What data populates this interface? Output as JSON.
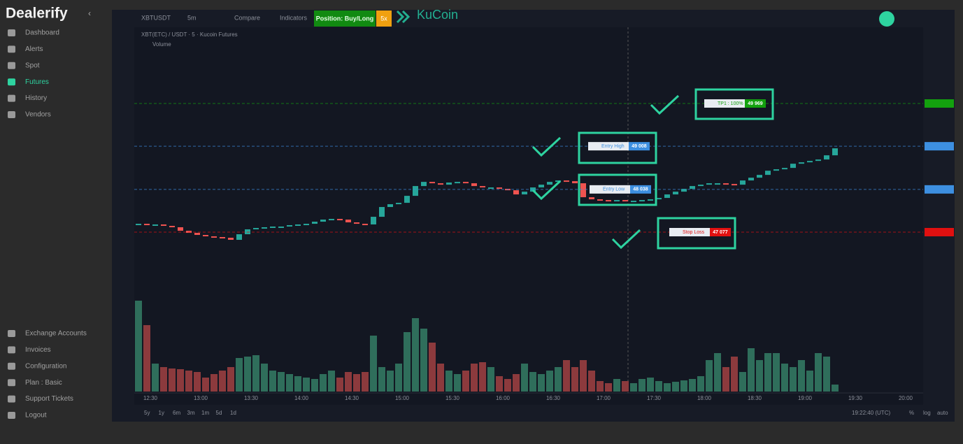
{
  "sidebar": {
    "brand": "Dealerify",
    "nav": [
      "Dashboard",
      "Alerts",
      "Spot",
      "Futures",
      "History",
      "Vendors"
    ],
    "bottom_nav": [
      "Exchange Accounts",
      "Invoices",
      "Configuration",
      "Plan : Basic",
      "Support Tickets",
      "Logout"
    ]
  },
  "toolbar": {
    "symbol": "XBTUSDT",
    "interval": "5m",
    "compare": "Compare",
    "indicators": "Indicators",
    "position": "Position: Buy/Long",
    "leverage": "5x",
    "exchange": "KuCoin"
  },
  "chart_data": {
    "type": "candlestick",
    "title": "XBT(ETC) / USDT · 5 · Kucoin Futures",
    "volume_label": "Volume",
    "time_labels": [
      "12:30",
      "13:00",
      "13:30",
      "14:00",
      "14:30",
      "15:00",
      "15:30",
      "16:00",
      "16:30",
      "17:00",
      "17:30",
      "18:00",
      "18:30",
      "19:00",
      "19:30",
      "20:00"
    ],
    "closes": [
      47265,
      47234,
      47250,
      47218,
      47187,
      47108,
      47061,
      47014,
      46983,
      46967,
      46951,
      46904,
      47030,
      47140,
      47171,
      47187,
      47203,
      47203,
      47234,
      47250,
      47265,
      47312,
      47359,
      47375,
      47359,
      47297,
      47265,
      47250,
      47422,
      47642,
      47705,
      47736,
      47893,
      48113,
      48207,
      48176,
      48144,
      48192,
      48207,
      48176,
      48113,
      48082,
      48082,
      48050,
      48019,
      47925,
      47987,
      48082,
      48144,
      48207,
      48239,
      48223,
      48176,
      47862,
      47815,
      47799,
      47783,
      47799,
      47783,
      47783,
      47799,
      47815,
      47846,
      47925,
      47987,
      48050,
      48113,
      48144,
      48176,
      48176,
      48160,
      48144,
      48239,
      48301,
      48364,
      48458,
      48490,
      48521,
      48615,
      48647,
      48678,
      48710,
      48804,
      48961
    ],
    "volumes": [
      130,
      95,
      40,
      35,
      33,
      32,
      30,
      28,
      20,
      25,
      30,
      35,
      48,
      50,
      52,
      40,
      30,
      28,
      25,
      22,
      20,
      18,
      25,
      30,
      20,
      28,
      25,
      28,
      80,
      35,
      30,
      40,
      85,
      105,
      90,
      70,
      40,
      30,
      25,
      30,
      40,
      42,
      35,
      22,
      18,
      25,
      40,
      28,
      25,
      30,
      35,
      45,
      35,
      45,
      30,
      15,
      12,
      18,
      15,
      12,
      18,
      20,
      15,
      12,
      14,
      16,
      18,
      22,
      45,
      55,
      35,
      50,
      28,
      62,
      45,
      55,
      55,
      40,
      35,
      45,
      30,
      55,
      50,
      10
    ],
    "levels": [
      {
        "name": "TP1 : 100%",
        "value": 49969,
        "value_label": "49 969",
        "color": "#13a10e"
      },
      {
        "name": "Entry High",
        "value": 49008,
        "value_label": "49 008",
        "color": "#3d8fe0"
      },
      {
        "name": "Entry Low",
        "value": 48038,
        "value_label": "48 038",
        "color": "#3d8fe0"
      },
      {
        "name": "Stop Loss",
        "value": 47077,
        "value_label": "47 077",
        "color": "#e01010"
      }
    ],
    "range_buttons": [
      "5y",
      "1y",
      "6m",
      "3m",
      "1m",
      "5d",
      "1d"
    ],
    "clock": "19:22:40 (UTC)",
    "scale_options": [
      "%",
      "log",
      "auto"
    ]
  }
}
